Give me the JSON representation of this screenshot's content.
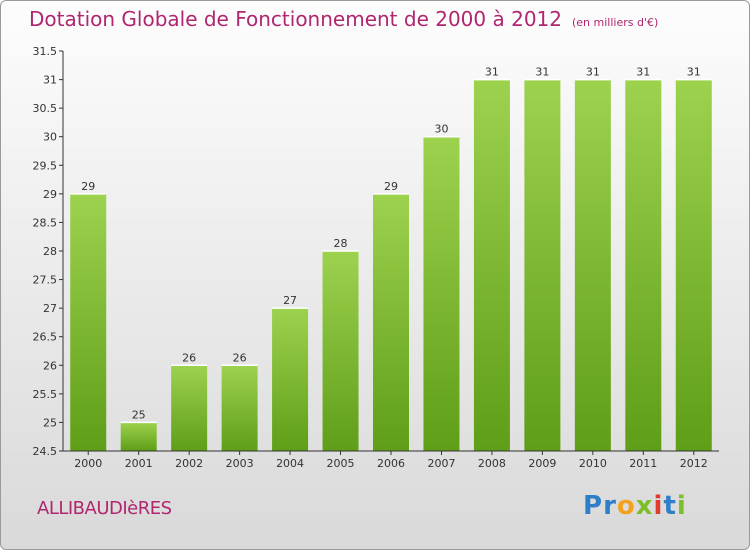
{
  "header": {
    "title": "Dotation Globale de Fonctionnement de 2000 à 2012",
    "unit": "(en milliers d'€)"
  },
  "footer": {
    "commune": "ALLIBAUDIèRES",
    "logo_letters": [
      {
        "ch": "P",
        "color": "#2f7fc8"
      },
      {
        "ch": "r",
        "color": "#2f7fc8"
      },
      {
        "ch": "o",
        "color": "#f4a21c"
      },
      {
        "ch": "x",
        "color": "#7cbf2a"
      },
      {
        "ch": "i",
        "color": "#e03c2e"
      },
      {
        "ch": "t",
        "color": "#2f7fc8"
      },
      {
        "ch": "i",
        "color": "#7cbf2a"
      }
    ]
  },
  "colors": {
    "bar_top": "#9dd24e",
    "bar_bottom": "#5f9e17",
    "title": "#b0266f"
  },
  "chart_data": {
    "type": "bar",
    "title": "Dotation Globale de Fonctionnement de 2000 à 2012",
    "subtitle": "(en milliers d'€)",
    "categories": [
      "2000",
      "2001",
      "2002",
      "2003",
      "2004",
      "2005",
      "2006",
      "2007",
      "2008",
      "2009",
      "2010",
      "2011",
      "2012"
    ],
    "values": [
      29,
      25,
      26,
      26,
      27,
      28,
      29,
      30,
      31,
      31,
      31,
      31,
      31
    ],
    "ylim": [
      24.5,
      31.5
    ],
    "yticks": [
      24.5,
      25,
      25.5,
      26,
      26.5,
      27,
      27.5,
      28,
      28.5,
      29,
      29.5,
      30,
      30.5,
      31,
      31.5
    ],
    "grid": false
  }
}
